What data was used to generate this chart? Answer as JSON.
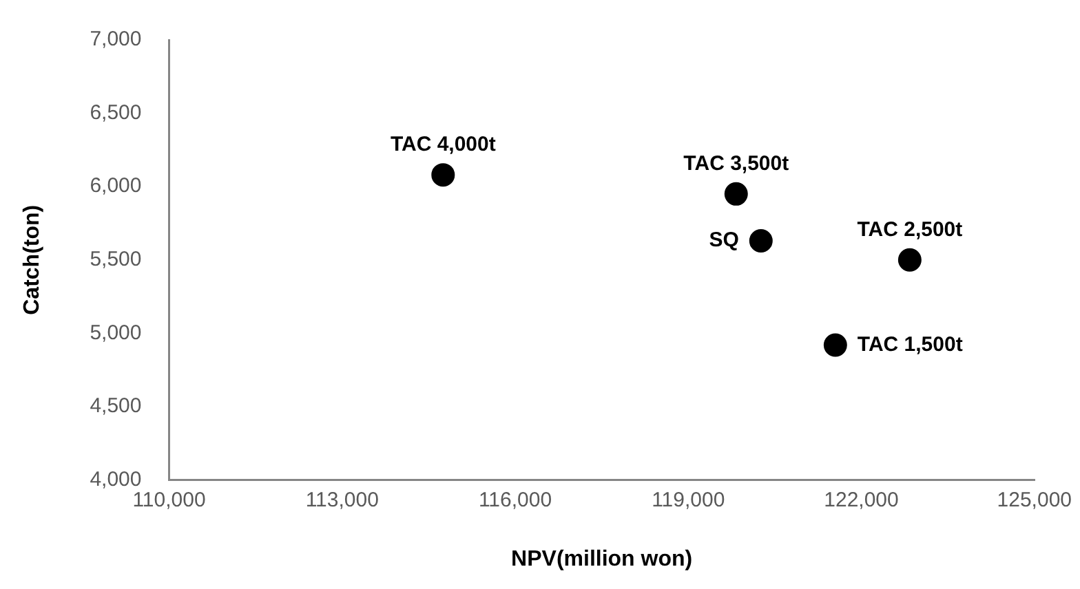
{
  "chart_data": {
    "type": "scatter",
    "xlabel": "NPV(million won)",
    "ylabel": "Catch(ton)",
    "x": [
      114750,
      119830,
      120260,
      122840,
      121550
    ],
    "values": [
      6080,
      5950,
      5630,
      5500,
      4920
    ],
    "color": "#000000",
    "marker": "circle",
    "grid": false,
    "legend": false,
    "xlim": [
      110000,
      125000
    ],
    "xticks": [
      {
        "value": 110000,
        "label": "110,000"
      },
      {
        "value": 113000,
        "label": "113,000"
      },
      {
        "value": 116000,
        "label": "116,000"
      },
      {
        "value": 119000,
        "label": "119,000"
      },
      {
        "value": 122000,
        "label": "122,000"
      },
      {
        "value": 125000,
        "label": "125,000"
      }
    ],
    "ylim": [
      4000,
      7000
    ],
    "yticks": [
      {
        "value": 4000,
        "label": "4,000"
      },
      {
        "value": 4500,
        "label": "4,500"
      },
      {
        "value": 5000,
        "label": "5,000"
      },
      {
        "value": 5500,
        "label": "5,500"
      },
      {
        "value": 6000,
        "label": "6,000"
      },
      {
        "value": 6500,
        "label": "6,500"
      },
      {
        "value": 7000,
        "label": "7,000"
      }
    ],
    "annotations": [
      {
        "text": "TAC 4,000t",
        "x": 114750,
        "y": 6080
      },
      {
        "text": "TAC 3,500t",
        "x": 119830,
        "y": 5950
      },
      {
        "text": "SQ",
        "x": 120260,
        "y": 5630
      },
      {
        "text": "TAC 2,500t",
        "x": 122840,
        "y": 5500
      },
      {
        "text": "TAC 1,500t",
        "x": 121550,
        "y": 4920
      }
    ]
  }
}
